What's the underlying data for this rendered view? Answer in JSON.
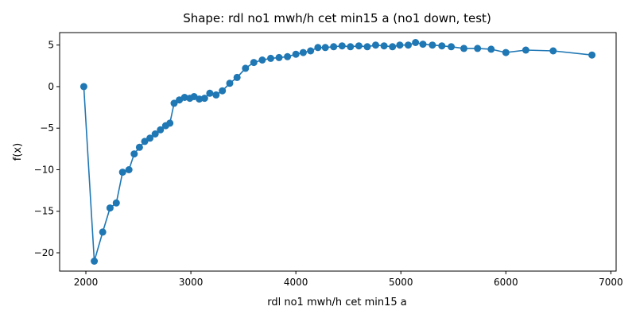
{
  "chart_data": {
    "type": "line",
    "title": "Shape: rdl no1 mwh/h cet min15 a (no1 down, test)",
    "xlabel": "rdl no1 mwh/h cet min15 a",
    "ylabel": "f(x)",
    "xlim": [
      1750,
      7050
    ],
    "ylim": [
      -22.2,
      6.5
    ],
    "xticks": [
      2000,
      3000,
      4000,
      5000,
      6000,
      7000
    ],
    "yticks": [
      5,
      0,
      -5,
      -10,
      -15,
      -20
    ],
    "grid": false,
    "color": "#1f77b4",
    "series": [
      {
        "marker": "circle",
        "x": [
          1980,
          2080,
          2160,
          2230,
          2290,
          2350,
          2410,
          2460,
          2510,
          2560,
          2610,
          2660,
          2710,
          2760,
          2800,
          2840,
          2890,
          2940,
          2990,
          3030,
          3080,
          3130,
          3180,
          3240,
          3300,
          3370,
          3440,
          3520,
          3600,
          3680,
          3760,
          3840,
          3920,
          4000,
          4070,
          4140,
          4210,
          4280,
          4360,
          4440,
          4520,
          4600,
          4680,
          4760,
          4840,
          4920,
          4990,
          5070,
          5140,
          5210,
          5300,
          5390,
          5480,
          5600,
          5730,
          5860,
          6000,
          6190,
          6450,
          6820
        ],
        "y": [
          0.0,
          -21.0,
          -17.5,
          -14.6,
          -14.0,
          -10.3,
          -10.0,
          -8.1,
          -7.3,
          -6.6,
          -6.2,
          -5.7,
          -5.2,
          -4.7,
          -4.4,
          -2.0,
          -1.6,
          -1.3,
          -1.4,
          -1.2,
          -1.5,
          -1.4,
          -0.8,
          -1.0,
          -0.5,
          0.4,
          1.1,
          2.2,
          2.9,
          3.2,
          3.4,
          3.5,
          3.6,
          3.9,
          4.1,
          4.3,
          4.7,
          4.7,
          4.8,
          4.9,
          4.8,
          4.9,
          4.8,
          5.0,
          4.9,
          4.8,
          5.0,
          5.0,
          5.3,
          5.1,
          5.0,
          4.9,
          4.8,
          4.6,
          4.6,
          4.5,
          4.1,
          4.4,
          4.3,
          3.8
        ]
      }
    ]
  }
}
